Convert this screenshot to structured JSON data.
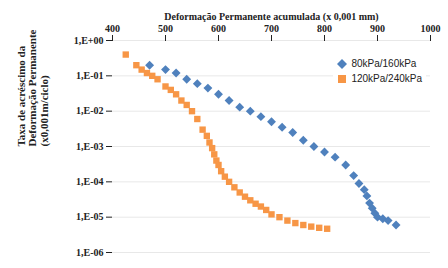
{
  "chart_data": {
    "type": "scatter",
    "x_label": "Deformação Permanente acumulada (x 0,001 mm)",
    "y_label": "Taxa de acréscimo da\nDeformação Permanente\n(x0,001m/ciclo)",
    "log": "y",
    "grid": true,
    "legend": "top-right",
    "xlim": [
      400,
      1000
    ],
    "xticks": [
      400,
      500,
      600,
      700,
      800,
      900,
      1000
    ],
    "ylim": [
      1e-06,
      1
    ],
    "yticks": [
      {
        "value": 1,
        "label": "1,E+00"
      },
      {
        "value": 0.1,
        "label": "1,E-01"
      },
      {
        "value": 0.01,
        "label": "1,E-02"
      },
      {
        "value": 0.001,
        "label": "1,E-03"
      },
      {
        "value": 0.0001,
        "label": "1,E-04"
      },
      {
        "value": 1e-05,
        "label": "1,E-05"
      },
      {
        "value": 1e-06,
        "label": "1,E-06"
      }
    ],
    "series": [
      {
        "name": "80kPa/160kPa",
        "color": "#4F81BD",
        "marker": "diamond",
        "x": [
          470,
          500,
          520,
          540,
          560,
          580,
          600,
          620,
          640,
          660,
          680,
          700,
          720,
          740,
          760,
          780,
          800,
          820,
          840,
          855,
          865,
          875,
          880,
          885,
          890,
          895,
          900,
          910,
          920,
          935
        ],
        "values": [
          0.2,
          0.15,
          0.12,
          0.08,
          0.06,
          0.045,
          0.03,
          0.02,
          0.013,
          0.01,
          0.007,
          0.005,
          0.0035,
          0.0025,
          0.0015,
          0.001,
          0.0007,
          0.0005,
          0.0003,
          0.00015,
          9e-05,
          6e-05,
          4e-05,
          2.5e-05,
          1.8e-05,
          1.3e-05,
          1e-05,
          9e-06,
          8e-06,
          6e-06
        ]
      },
      {
        "name": "120kPa/240kPa",
        "color": "#F79646",
        "marker": "square",
        "x": [
          425,
          445,
          455,
          465,
          475,
          485,
          500,
          510,
          520,
          530,
          540,
          550,
          560,
          570,
          578,
          583,
          588,
          592,
          596,
          600,
          605,
          612,
          620,
          630,
          640,
          650,
          660,
          670,
          680,
          690,
          700,
          715,
          730,
          745,
          760,
          775,
          790,
          805
        ],
        "values": [
          0.4,
          0.2,
          0.15,
          0.12,
          0.1,
          0.08,
          0.05,
          0.04,
          0.03,
          0.02,
          0.015,
          0.01,
          0.006,
          0.003,
          0.002,
          0.0013,
          0.0009,
          0.0006,
          0.0004,
          0.0003,
          0.0002,
          0.00014,
          0.0001,
          7e-05,
          5e-05,
          3.8e-05,
          3e-05,
          2.4e-05,
          2e-05,
          1.6e-05,
          1.2e-05,
          1e-05,
          8e-06,
          6.8e-06,
          6e-06,
          5.4e-06,
          5e-06,
          4.7e-06
        ]
      }
    ]
  }
}
